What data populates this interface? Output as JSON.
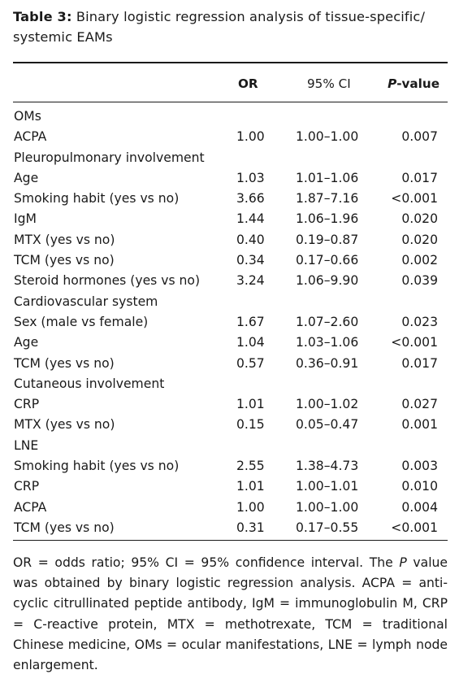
{
  "caption": {
    "label": "Table 3:",
    "text": "Binary logistic regression analysis of tissue-specific/ systemic EAMs"
  },
  "columns": {
    "or": "OR",
    "ci": "95% CI",
    "p_italic": "P",
    "p_rest": "-value"
  },
  "rows": [
    {
      "label": "OMs",
      "or": "",
      "ci": "",
      "p": ""
    },
    {
      "label": "ACPA",
      "or": "1.00",
      "ci": "1.00–1.00",
      "p": "0.007"
    },
    {
      "label": "Pleuropulmonary involvement",
      "or": "",
      "ci": "",
      "p": ""
    },
    {
      "label": "Age",
      "or": "1.03",
      "ci": "1.01–1.06",
      "p": "0.017"
    },
    {
      "label": "Smoking habit (yes vs no)",
      "or": "3.66",
      "ci": "1.87–7.16",
      "p": "<0.001"
    },
    {
      "label": "IgM",
      "or": "1.44",
      "ci": "1.06–1.96",
      "p": "0.020"
    },
    {
      "label": "MTX (yes vs no)",
      "or": "0.40",
      "ci": "0.19–0.87",
      "p": "0.020"
    },
    {
      "label": "TCM (yes vs no)",
      "or": "0.34",
      "ci": "0.17–0.66",
      "p": "0.002"
    },
    {
      "label": "Steroid hormones (yes vs no)",
      "or": "3.24",
      "ci": "1.06–9.90",
      "p": "0.039"
    },
    {
      "label": "Cardiovascular system",
      "or": "",
      "ci": "",
      "p": ""
    },
    {
      "label": "Sex (male vs female)",
      "or": "1.67",
      "ci": "1.07–2.60",
      "p": "0.023"
    },
    {
      "label": "Age",
      "or": "1.04",
      "ci": "1.03–1.06",
      "p": "<0.001"
    },
    {
      "label": "TCM (yes vs no)",
      "or": "0.57",
      "ci": "0.36–0.91",
      "p": "0.017"
    },
    {
      "label": "Cutaneous involvement",
      "or": "",
      "ci": "",
      "p": ""
    },
    {
      "label": "CRP",
      "or": "1.01",
      "ci": "1.00–1.02",
      "p": "0.027"
    },
    {
      "label": "MTX (yes vs no)",
      "or": "0.15",
      "ci": "0.05–0.47",
      "p": "0.001"
    },
    {
      "label": "LNE",
      "or": "",
      "ci": "",
      "p": ""
    },
    {
      "label": "Smoking habit (yes vs no)",
      "or": "2.55",
      "ci": "1.38–4.73",
      "p": "0.003"
    },
    {
      "label": "CRP",
      "or": "1.01",
      "ci": "1.00–1.01",
      "p": "0.010"
    },
    {
      "label": "ACPA",
      "or": "1.00",
      "ci": "1.00–1.00",
      "p": "0.004"
    },
    {
      "label": "TCM (yes vs no)",
      "or": "0.31",
      "ci": "0.17–0.55",
      "p": "<0.001"
    }
  ],
  "footnote": {
    "part1": "OR = odds ratio; 95% CI = 95% confidence interval. The ",
    "p_italic": "P",
    "part2": " value was obtained by binary logistic regression analysis. ACPA = anti-cyclic citrullinated peptide antibody, IgM = immunoglobulin M, CRP = C-reactive protein, MTX = methotrexate, TCM = traditional Chinese medicine, OMs = ocular manifestations, LNE = lymph node enlargement."
  }
}
